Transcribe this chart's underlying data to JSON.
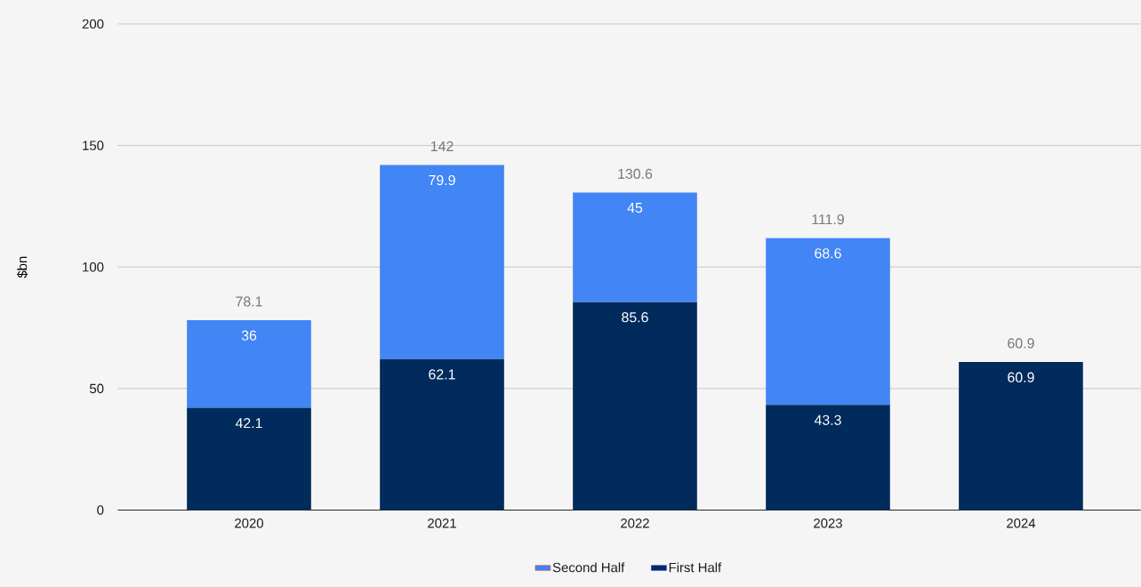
{
  "chart_data": {
    "type": "bar",
    "stacked": true,
    "ylabel": "$bn",
    "categories": [
      "2020",
      "2021",
      "2022",
      "2023",
      "2024"
    ],
    "series": [
      {
        "name": "First Half",
        "color": "#002b5c",
        "values": [
          42.1,
          62.1,
          85.6,
          43.3,
          60.9
        ]
      },
      {
        "name": "Second Half",
        "color": "#4285f4",
        "values": [
          36,
          79.9,
          45,
          68.6,
          null
        ]
      }
    ],
    "totals": [
      "78.1",
      "142",
      "130.6",
      "111.9",
      "60.9"
    ],
    "data_labels": true,
    "ylim": [
      0,
      200
    ],
    "yticks": [
      0,
      50,
      100,
      150,
      200
    ],
    "grid": "y",
    "legend": "bottom"
  }
}
